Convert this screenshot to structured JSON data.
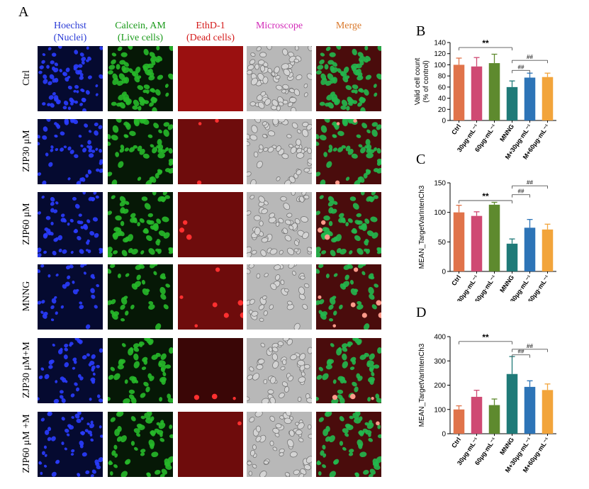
{
  "figure": {
    "panel_a_letter": "A",
    "columns": [
      {
        "line1": "Hoechst",
        "line2": "(Nuclei)",
        "color": "#2a3bd6",
        "tile": "nuclei"
      },
      {
        "line1": "Calcein, AM",
        "line2": "(Live cells)",
        "color": "#1a9a1a",
        "tile": "live"
      },
      {
        "line1": "EthD-1",
        "line2": "(Dead cells)",
        "color": "#d41a1a",
        "tile": "dead"
      },
      {
        "line1": "Microscope",
        "line2": "",
        "color": "#d22ab8",
        "tile": "scope"
      },
      {
        "line1": "Merge",
        "line2": "",
        "color": "#d9782a",
        "tile": "merge"
      }
    ],
    "rows": [
      "Ctrl",
      "ZJP30 μM",
      "ZJP60 μM",
      "MNNG",
      "ZJP30 μM+M",
      "ZJP60 μM +M"
    ]
  },
  "chart_data": [
    {
      "panel": "B",
      "type": "bar",
      "ylabel": "Valid cell count\n(% of control)",
      "ylim": [
        0,
        140
      ],
      "yticks": [
        0,
        20,
        40,
        60,
        80,
        100,
        120,
        140
      ],
      "categories": [
        "Ctrl",
        "30μg·mL⁻¹",
        "60μg·mL⁻¹",
        "MNNG",
        "M+30μg·mL⁻¹",
        "M+60μg·mL⁻¹"
      ],
      "values": [
        100,
        97,
        103,
        60,
        77,
        78
      ],
      "errors": [
        12,
        16,
        16,
        11,
        8,
        7
      ],
      "colors": [
        "#e0734a",
        "#cf4a73",
        "#5e8a2e",
        "#1f7a78",
        "#2d74b7",
        "#f2a43b"
      ],
      "significance": [
        {
          "label": "**",
          "from": 0,
          "to": 3,
          "y": 131
        },
        {
          "label": "##",
          "from": 3,
          "to": 4,
          "y": 90
        },
        {
          "label": "##",
          "from": 3,
          "to": 5,
          "y": 108
        }
      ]
    },
    {
      "panel": "C",
      "type": "bar",
      "ylabel": "MEAN_TargetVarIntenCh3",
      "ylim": [
        0,
        150
      ],
      "yticks": [
        0,
        50,
        100,
        150
      ],
      "categories": [
        "Ctrl",
        "30μg·mL⁻¹",
        "60μg·mL⁻¹",
        "MNNG",
        "M+30μg·mL⁻¹",
        "M+60μg·mL⁻¹"
      ],
      "values": [
        100,
        94,
        113,
        47,
        74,
        71
      ],
      "errors": [
        12,
        7,
        4,
        8,
        14,
        9
      ],
      "colors": [
        "#e0734a",
        "#cf4a73",
        "#5e8a2e",
        "#1f7a78",
        "#2d74b7",
        "#f2a43b"
      ],
      "significance": [
        {
          "label": "**",
          "from": 0,
          "to": 3,
          "y": 120
        },
        {
          "label": "##",
          "from": 3,
          "to": 4,
          "y": 130
        },
        {
          "label": "##",
          "from": 3,
          "to": 5,
          "y": 145
        }
      ]
    },
    {
      "panel": "D",
      "type": "bar",
      "ylabel": "MEAN_TargetVarIntenCh3",
      "ylim": [
        0,
        400
      ],
      "yticks": [
        0,
        100,
        200,
        300,
        400
      ],
      "categories": [
        "Ctrl",
        "30μg·mL⁻¹",
        "60μg·mL⁻¹",
        "MNNG",
        "M+30μg·mL⁻¹",
        "M+60μg·mL⁻¹"
      ],
      "values": [
        100,
        152,
        118,
        246,
        193,
        180
      ],
      "errors": [
        15,
        27,
        25,
        72,
        25,
        25
      ],
      "colors": [
        "#e0734a",
        "#cf4a73",
        "#5e8a2e",
        "#1f7a78",
        "#2d74b7",
        "#f2a43b"
      ],
      "significance": [
        {
          "label": "**",
          "from": 0,
          "to": 3,
          "y": 380
        },
        {
          "label": "##",
          "from": 3,
          "to": 4,
          "y": 325
        },
        {
          "label": "##",
          "from": 3,
          "to": 5,
          "y": 348
        }
      ]
    }
  ]
}
